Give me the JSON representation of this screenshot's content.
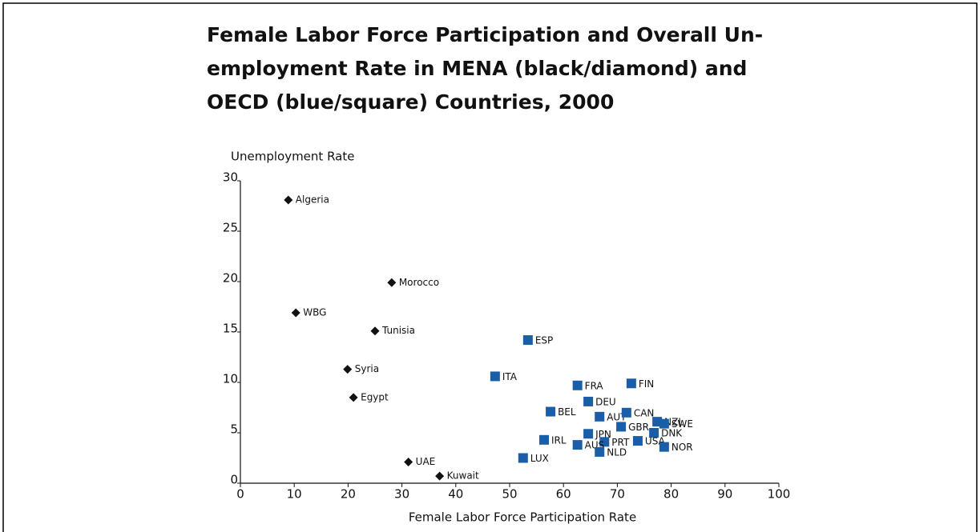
{
  "chart_data": {
    "type": "scatter",
    "title": [
      "Female Labor Force Participation and Overall Un-",
      "employment Rate in MENA (black/diamond) and",
      "OECD (blue/square) Countries, 2000"
    ],
    "x_label": "Female Labor Force Participation Rate",
    "y_label": "Unemployment Rate",
    "xlim": [
      0,
      100
    ],
    "xticks": [
      0,
      10,
      20,
      30,
      40,
      50,
      60,
      70,
      80,
      90,
      100
    ],
    "ylim": [
      0,
      30
    ],
    "yticks": [
      0,
      5,
      10,
      15,
      20,
      25,
      30
    ],
    "series": [
      {
        "color": "#111111",
        "marker": "diamond",
        "labels": [
          "Algeria",
          "Morocco",
          "WBG",
          "Tunisia",
          "Syria",
          "Egypt",
          "UAE",
          "Kuwait"
        ],
        "x": [
          8.9,
          28.1,
          10.3,
          25,
          19.9,
          21,
          31.2,
          37
        ],
        "values": [
          28.1,
          19.9,
          16.9,
          15.1,
          11.3,
          8.5,
          2.1,
          0.7
        ]
      },
      {
        "color": "#1a5ea8",
        "marker": "square",
        "labels": [
          "ESP",
          "ITA",
          "FRA",
          "FIN",
          "DEU",
          "BEL",
          "AUT",
          "CAN",
          "NZL",
          "SWE",
          "GBR",
          "DNK",
          "JPN",
          "PRT",
          "AUS",
          "USA",
          "IRL",
          "NLD",
          "LUX",
          "NOR"
        ],
        "x": [
          53.4,
          47.3,
          62.6,
          72.6,
          64.6,
          57.6,
          66.7,
          71.7,
          77.4,
          78.7,
          70.7,
          76.8,
          64.6,
          67.6,
          62.6,
          73.8,
          56.4,
          66.7,
          52.5,
          78.7
        ],
        "values": [
          14.2,
          10.6,
          9.7,
          9.9,
          8.1,
          7.1,
          6.6,
          7.0,
          6.1,
          5.9,
          5.6,
          5.0,
          4.9,
          4.1,
          3.8,
          4.2,
          4.3,
          3.1,
          2.5,
          3.6
        ]
      }
    ]
  }
}
